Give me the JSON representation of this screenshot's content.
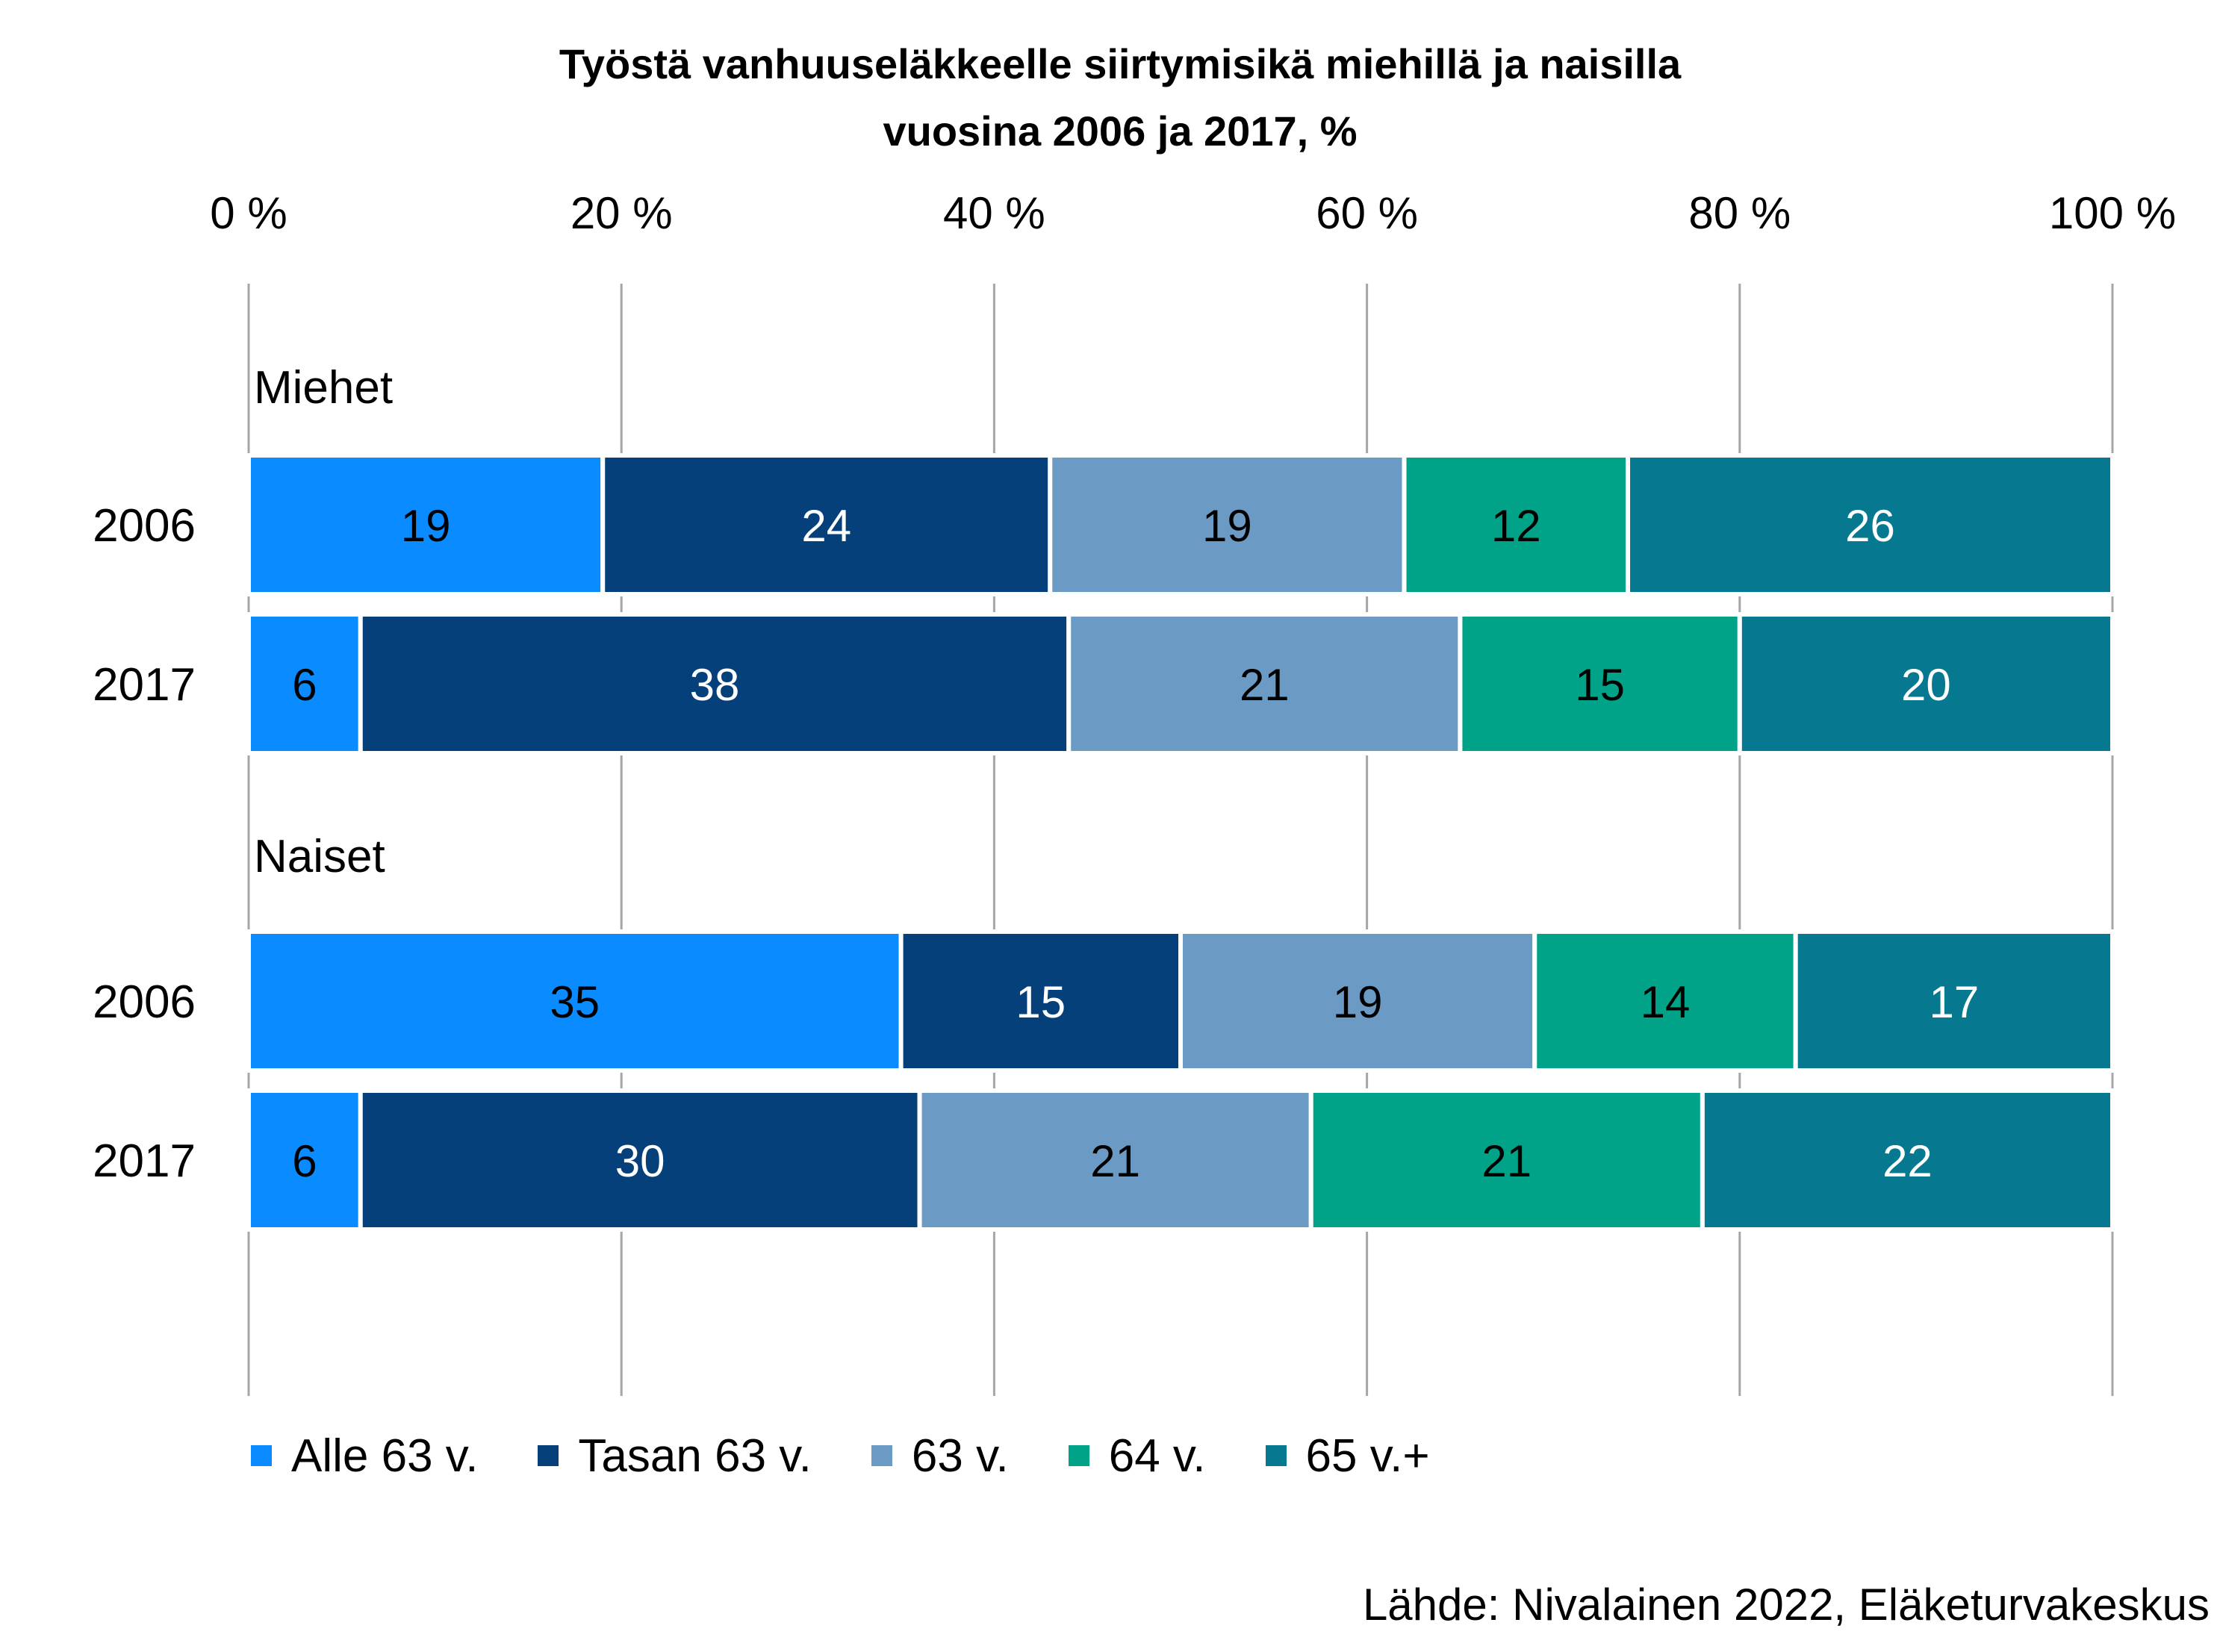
{
  "chart_data": {
    "type": "bar",
    "orientation": "horizontal",
    "stacked": "percent",
    "title_line1": "Työstä vanhuuseläkkeelle siirtymisikä miehillä ja naisilla",
    "title_line2": "vuosina 2006 ja 2017, %",
    "x_ticks": [
      "0 %",
      "20 %",
      "40 %",
      "60 %",
      "80 %",
      "100 %"
    ],
    "xlim": [
      0,
      100
    ],
    "grid": true,
    "legend_position": "bottom",
    "groups": [
      {
        "label": "Miehet",
        "rows": [
          {
            "label": "2006",
            "values": [
              19,
              24,
              19,
              12,
              26
            ]
          },
          {
            "label": "2017",
            "values": [
              6,
              38,
              21,
              15,
              20
            ]
          }
        ]
      },
      {
        "label": "Naiset",
        "rows": [
          {
            "label": "2006",
            "values": [
              35,
              15,
              19,
              14,
              17
            ]
          },
          {
            "label": "2017",
            "values": [
              6,
              30,
              21,
              21,
              22
            ]
          }
        ]
      }
    ],
    "series": [
      {
        "name": "Alle 63 v.",
        "color": "#0A8BFF",
        "label_color": "#000000"
      },
      {
        "name": "Tasan 63 v.",
        "color": "#05407A",
        "label_color": "#FFFFFF"
      },
      {
        "name": "63 v.",
        "color": "#6B9AC4",
        "label_color": "#000000"
      },
      {
        "name": "64 v.",
        "color": "#00A388",
        "label_color": "#000000"
      },
      {
        "name": "65 v.+",
        "color": "#06788F",
        "label_color": "#FFFFFF"
      }
    ],
    "source": "Lähde: Nivalainen 2022, Eläketurvakeskus"
  }
}
